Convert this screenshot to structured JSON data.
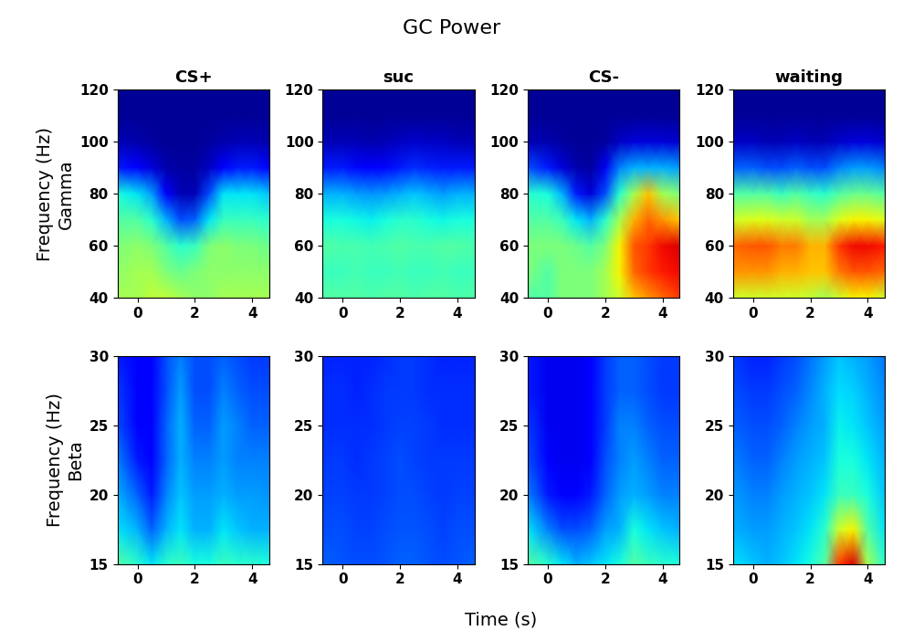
{
  "title": "GC Power",
  "xlabel": "Time (s)",
  "color": "jet",
  "color_range": [
    0,
    1
  ],
  "x": [
    -0.7,
    0,
    0.5,
    1,
    1.5,
    2,
    2.5,
    3,
    3.5,
    4,
    4.6
  ],
  "xlim": [
    -0.7,
    4.6
  ],
  "xticks": [
    0,
    2,
    4
  ],
  "chart_data": [
    {
      "type": "heatmap",
      "title": "CS+",
      "ylabel": "Frequency (Hz)\nGamma",
      "y": [
        40,
        50,
        60,
        70,
        80,
        90,
        100,
        110,
        120
      ],
      "ylim": [
        40,
        120
      ],
      "yticks": [
        40,
        60,
        80,
        100,
        120
      ],
      "cells": [
        [
          0.55,
          0.55,
          0.58,
          0.58,
          0.55,
          0.52,
          0.52,
          0.55,
          0.55,
          0.55,
          0.55
        ],
        [
          0.52,
          0.55,
          0.55,
          0.5,
          0.48,
          0.5,
          0.52,
          0.52,
          0.52,
          0.52,
          0.52
        ],
        [
          0.5,
          0.52,
          0.5,
          0.45,
          0.4,
          0.42,
          0.5,
          0.52,
          0.5,
          0.5,
          0.48
        ],
        [
          0.45,
          0.45,
          0.4,
          0.3,
          0.2,
          0.22,
          0.35,
          0.42,
          0.42,
          0.42,
          0.4
        ],
        [
          0.38,
          0.35,
          0.28,
          0.12,
          0.05,
          0.05,
          0.2,
          0.35,
          0.35,
          0.35,
          0.32
        ],
        [
          0.15,
          0.12,
          0.08,
          0.04,
          0.03,
          0.03,
          0.06,
          0.12,
          0.15,
          0.15,
          0.12
        ],
        [
          0.05,
          0.04,
          0.03,
          0.02,
          0.02,
          0.02,
          0.03,
          0.04,
          0.05,
          0.05,
          0.04
        ],
        [
          0.02,
          0.02,
          0.02,
          0.02,
          0.02,
          0.02,
          0.02,
          0.02,
          0.02,
          0.02,
          0.02
        ],
        [
          0.02,
          0.02,
          0.02,
          0.02,
          0.02,
          0.02,
          0.02,
          0.02,
          0.02,
          0.02,
          0.02
        ]
      ]
    },
    {
      "type": "heatmap",
      "title": "suc",
      "y": [
        40,
        50,
        60,
        70,
        80,
        90,
        100,
        110,
        120
      ],
      "ylim": [
        40,
        120
      ],
      "yticks": [
        40,
        60,
        80,
        100,
        120
      ],
      "cells": [
        [
          0.45,
          0.45,
          0.45,
          0.44,
          0.45,
          0.45,
          0.44,
          0.45,
          0.45,
          0.44,
          0.45
        ],
        [
          0.42,
          0.42,
          0.43,
          0.42,
          0.42,
          0.43,
          0.42,
          0.42,
          0.43,
          0.42,
          0.42
        ],
        [
          0.45,
          0.44,
          0.44,
          0.43,
          0.44,
          0.45,
          0.44,
          0.44,
          0.45,
          0.45,
          0.44
        ],
        [
          0.38,
          0.38,
          0.37,
          0.36,
          0.38,
          0.4,
          0.4,
          0.38,
          0.37,
          0.38,
          0.38
        ],
        [
          0.3,
          0.3,
          0.28,
          0.27,
          0.28,
          0.3,
          0.32,
          0.3,
          0.28,
          0.3,
          0.3
        ],
        [
          0.15,
          0.15,
          0.13,
          0.12,
          0.13,
          0.15,
          0.17,
          0.16,
          0.15,
          0.15,
          0.15
        ],
        [
          0.05,
          0.05,
          0.05,
          0.04,
          0.05,
          0.06,
          0.07,
          0.06,
          0.06,
          0.05,
          0.05
        ],
        [
          0.02,
          0.02,
          0.02,
          0.02,
          0.02,
          0.02,
          0.02,
          0.02,
          0.02,
          0.02,
          0.02
        ],
        [
          0.02,
          0.02,
          0.02,
          0.02,
          0.02,
          0.02,
          0.02,
          0.02,
          0.02,
          0.02,
          0.02
        ]
      ]
    },
    {
      "type": "heatmap",
      "title": "CS-",
      "y": [
        40,
        50,
        60,
        70,
        80,
        90,
        100,
        110,
        120
      ],
      "ylim": [
        40,
        120
      ],
      "yticks": [
        40,
        60,
        80,
        100,
        120
      ],
      "cells": [
        [
          0.45,
          0.45,
          0.5,
          0.5,
          0.5,
          0.55,
          0.6,
          0.7,
          0.75,
          0.8,
          0.85
        ],
        [
          0.5,
          0.45,
          0.5,
          0.5,
          0.5,
          0.55,
          0.65,
          0.8,
          0.85,
          0.88,
          0.9
        ],
        [
          0.5,
          0.5,
          0.5,
          0.48,
          0.45,
          0.5,
          0.65,
          0.82,
          0.85,
          0.9,
          0.92
        ],
        [
          0.45,
          0.45,
          0.42,
          0.35,
          0.3,
          0.4,
          0.55,
          0.72,
          0.8,
          0.75,
          0.7
        ],
        [
          0.4,
          0.38,
          0.3,
          0.15,
          0.08,
          0.2,
          0.4,
          0.55,
          0.7,
          0.55,
          0.5
        ],
        [
          0.2,
          0.15,
          0.08,
          0.04,
          0.03,
          0.1,
          0.25,
          0.3,
          0.3,
          0.3,
          0.28
        ],
        [
          0.05,
          0.04,
          0.03,
          0.02,
          0.02,
          0.03,
          0.06,
          0.08,
          0.08,
          0.08,
          0.07
        ],
        [
          0.02,
          0.02,
          0.02,
          0.02,
          0.02,
          0.02,
          0.02,
          0.02,
          0.02,
          0.02,
          0.02
        ],
        [
          0.02,
          0.02,
          0.02,
          0.02,
          0.02,
          0.02,
          0.02,
          0.02,
          0.02,
          0.02,
          0.02
        ]
      ]
    },
    {
      "type": "heatmap",
      "title": "waiting",
      "y": [
        40,
        50,
        60,
        70,
        80,
        90,
        100,
        110,
        120
      ],
      "ylim": [
        40,
        120
      ],
      "yticks": [
        40,
        60,
        80,
        100,
        120
      ],
      "cells": [
        [
          0.6,
          0.6,
          0.6,
          0.6,
          0.6,
          0.58,
          0.55,
          0.6,
          0.65,
          0.65,
          0.6
        ],
        [
          0.75,
          0.75,
          0.75,
          0.72,
          0.72,
          0.7,
          0.7,
          0.78,
          0.82,
          0.82,
          0.8
        ],
        [
          0.8,
          0.82,
          0.82,
          0.78,
          0.78,
          0.72,
          0.72,
          0.85,
          0.9,
          0.9,
          0.88
        ],
        [
          0.6,
          0.62,
          0.62,
          0.6,
          0.6,
          0.55,
          0.55,
          0.62,
          0.65,
          0.65,
          0.62
        ],
        [
          0.45,
          0.45,
          0.45,
          0.42,
          0.45,
          0.42,
          0.4,
          0.45,
          0.48,
          0.48,
          0.45
        ],
        [
          0.22,
          0.22,
          0.2,
          0.2,
          0.22,
          0.2,
          0.2,
          0.25,
          0.28,
          0.28,
          0.25
        ],
        [
          0.06,
          0.06,
          0.05,
          0.05,
          0.06,
          0.05,
          0.05,
          0.07,
          0.08,
          0.08,
          0.07
        ],
        [
          0.02,
          0.02,
          0.02,
          0.02,
          0.02,
          0.02,
          0.02,
          0.02,
          0.02,
          0.02,
          0.02
        ],
        [
          0.02,
          0.02,
          0.02,
          0.02,
          0.02,
          0.02,
          0.02,
          0.02,
          0.02,
          0.02,
          0.02
        ]
      ]
    },
    {
      "type": "heatmap",
      "ylabel": "Frequency (Hz)\nBeta",
      "y": [
        15,
        17.5,
        20,
        22.5,
        25,
        27.5,
        30
      ],
      "ylim": [
        15,
        30
      ],
      "yticks": [
        15,
        20,
        25,
        30
      ],
      "cells": [
        [
          0.45,
          0.4,
          0.35,
          0.4,
          0.42,
          0.38,
          0.38,
          0.42,
          0.4,
          0.4,
          0.38
        ],
        [
          0.35,
          0.3,
          0.22,
          0.3,
          0.35,
          0.3,
          0.3,
          0.35,
          0.32,
          0.3,
          0.3
        ],
        [
          0.3,
          0.22,
          0.15,
          0.25,
          0.32,
          0.28,
          0.28,
          0.3,
          0.28,
          0.28,
          0.27
        ],
        [
          0.25,
          0.15,
          0.12,
          0.22,
          0.3,
          0.25,
          0.25,
          0.28,
          0.25,
          0.25,
          0.25
        ],
        [
          0.2,
          0.12,
          0.12,
          0.22,
          0.3,
          0.22,
          0.22,
          0.28,
          0.25,
          0.22,
          0.22
        ],
        [
          0.18,
          0.12,
          0.12,
          0.2,
          0.28,
          0.2,
          0.2,
          0.25,
          0.22,
          0.2,
          0.2
        ],
        [
          0.15,
          0.12,
          0.12,
          0.2,
          0.25,
          0.2,
          0.2,
          0.22,
          0.2,
          0.18,
          0.18
        ]
      ]
    },
    {
      "type": "heatmap",
      "y": [
        15,
        17.5,
        20,
        22.5,
        25,
        27.5,
        30
      ],
      "ylim": [
        15,
        30
      ],
      "yticks": [
        15,
        20,
        25,
        30
      ],
      "cells": [
        [
          0.22,
          0.21,
          0.2,
          0.2,
          0.21,
          0.22,
          0.22,
          0.21,
          0.2,
          0.21,
          0.22
        ],
        [
          0.2,
          0.2,
          0.19,
          0.19,
          0.2,
          0.21,
          0.21,
          0.2,
          0.19,
          0.2,
          0.2
        ],
        [
          0.19,
          0.19,
          0.18,
          0.18,
          0.19,
          0.2,
          0.2,
          0.19,
          0.18,
          0.19,
          0.19
        ],
        [
          0.18,
          0.18,
          0.17,
          0.18,
          0.19,
          0.2,
          0.19,
          0.18,
          0.18,
          0.18,
          0.18
        ],
        [
          0.17,
          0.17,
          0.17,
          0.17,
          0.18,
          0.19,
          0.19,
          0.18,
          0.17,
          0.17,
          0.17
        ],
        [
          0.17,
          0.17,
          0.16,
          0.17,
          0.18,
          0.18,
          0.18,
          0.17,
          0.17,
          0.17,
          0.17
        ],
        [
          0.16,
          0.16,
          0.16,
          0.16,
          0.17,
          0.18,
          0.18,
          0.17,
          0.16,
          0.16,
          0.16
        ]
      ]
    },
    {
      "type": "heatmap",
      "y": [
        15,
        17.5,
        20,
        22.5,
        25,
        27.5,
        30
      ],
      "ylim": [
        15,
        30
      ],
      "yticks": [
        15,
        20,
        25,
        30
      ],
      "cells": [
        [
          0.45,
          0.4,
          0.35,
          0.3,
          0.32,
          0.35,
          0.38,
          0.45,
          0.42,
          0.4,
          0.38
        ],
        [
          0.35,
          0.25,
          0.2,
          0.2,
          0.22,
          0.28,
          0.3,
          0.38,
          0.35,
          0.32,
          0.3
        ],
        [
          0.25,
          0.15,
          0.12,
          0.12,
          0.15,
          0.22,
          0.28,
          0.3,
          0.28,
          0.25,
          0.25
        ],
        [
          0.2,
          0.12,
          0.1,
          0.1,
          0.12,
          0.2,
          0.25,
          0.28,
          0.25,
          0.22,
          0.22
        ],
        [
          0.18,
          0.1,
          0.1,
          0.1,
          0.12,
          0.18,
          0.25,
          0.25,
          0.22,
          0.2,
          0.2
        ],
        [
          0.15,
          0.1,
          0.1,
          0.1,
          0.12,
          0.18,
          0.22,
          0.22,
          0.2,
          0.18,
          0.18
        ],
        [
          0.15,
          0.1,
          0.1,
          0.1,
          0.12,
          0.18,
          0.22,
          0.22,
          0.2,
          0.18,
          0.18
        ]
      ]
    },
    {
      "type": "heatmap",
      "y": [
        15,
        17.5,
        20,
        22.5,
        25,
        27.5,
        30
      ],
      "ylim": [
        15,
        30
      ],
      "yticks": [
        15,
        20,
        25,
        30
      ],
      "cells": [
        [
          0.35,
          0.32,
          0.3,
          0.32,
          0.35,
          0.38,
          0.45,
          0.85,
          0.92,
          0.55,
          0.4
        ],
        [
          0.3,
          0.28,
          0.28,
          0.3,
          0.32,
          0.35,
          0.4,
          0.6,
          0.65,
          0.45,
          0.35
        ],
        [
          0.28,
          0.25,
          0.25,
          0.28,
          0.3,
          0.32,
          0.35,
          0.42,
          0.42,
          0.38,
          0.32
        ],
        [
          0.25,
          0.22,
          0.22,
          0.25,
          0.28,
          0.3,
          0.32,
          0.38,
          0.38,
          0.35,
          0.3
        ],
        [
          0.22,
          0.2,
          0.2,
          0.22,
          0.25,
          0.28,
          0.3,
          0.36,
          0.35,
          0.32,
          0.28
        ],
        [
          0.2,
          0.18,
          0.18,
          0.2,
          0.22,
          0.26,
          0.3,
          0.34,
          0.33,
          0.3,
          0.26
        ],
        [
          0.18,
          0.16,
          0.16,
          0.18,
          0.2,
          0.24,
          0.28,
          0.32,
          0.3,
          0.28,
          0.24
        ]
      ]
    }
  ]
}
